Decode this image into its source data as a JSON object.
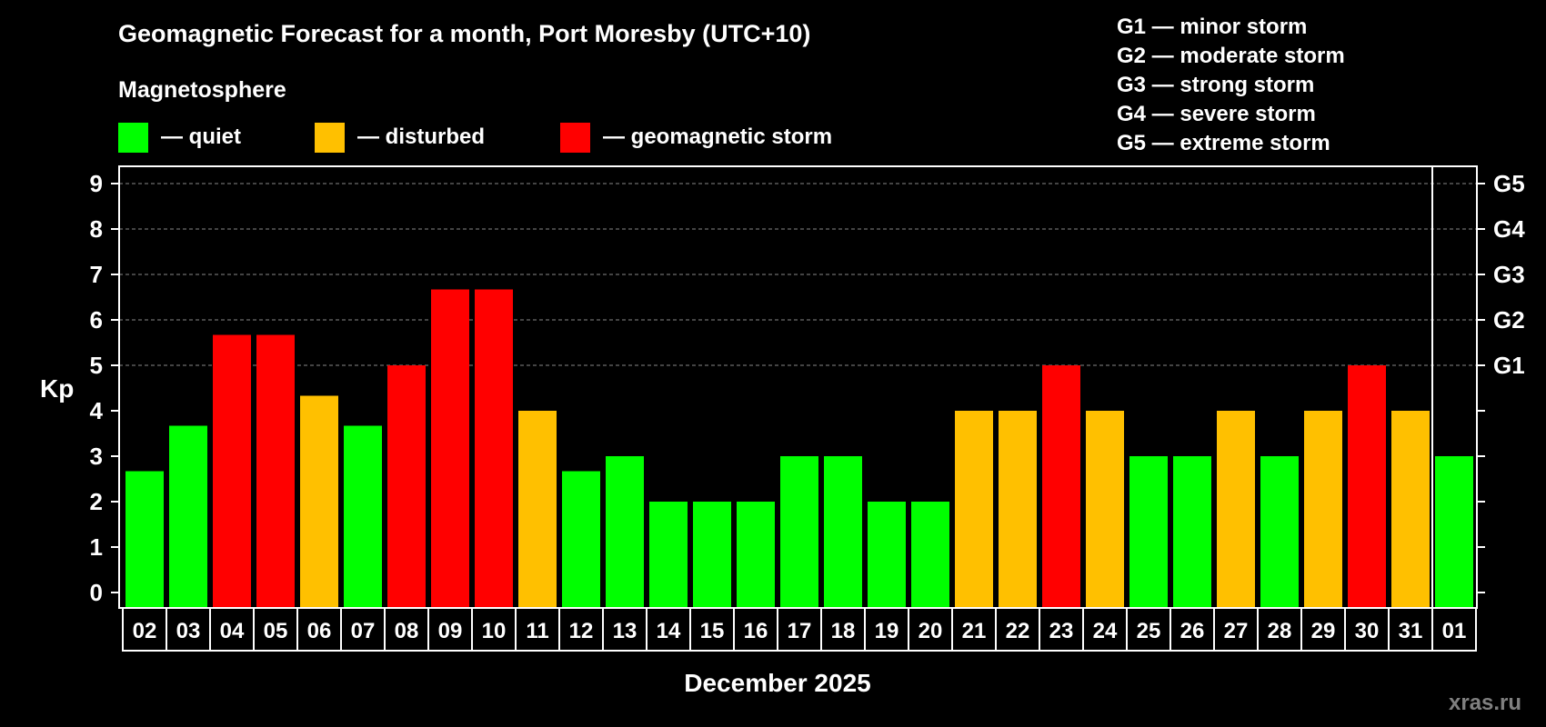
{
  "header": {
    "title": "Geomagnetic Forecast for a month, Port Moresby (UTC+10)",
    "subtitle": "Magnetosphere"
  },
  "legend": [
    {
      "label": "— quiet",
      "color": "#00ff00",
      "key": "quiet"
    },
    {
      "label": "— disturbed",
      "color": "#ffc000",
      "key": "disturbed"
    },
    {
      "label": "— geomagnetic storm",
      "color": "#ff0000",
      "key": "storm"
    }
  ],
  "gscale_legend": [
    "G1 — minor storm",
    "G2 — moderate storm",
    "G3 — strong storm",
    "G4 — severe storm",
    "G5 — extreme storm"
  ],
  "watermark": "xras.ru",
  "colors": {
    "background": "#000000",
    "quiet": "#00ff00",
    "disturbed": "#ffc000",
    "storm": "#ff0000",
    "grid": "#888888",
    "axis": "#ffffff"
  },
  "chart_data": {
    "type": "bar",
    "title": "Geomagnetic Forecast for a month, Port Moresby (UTC+10)",
    "subtitle": "Magnetosphere",
    "xlabel": "December 2025",
    "ylabel": "Kp",
    "ylim": [
      0,
      9
    ],
    "yticks": [
      0,
      1,
      2,
      3,
      4,
      5,
      6,
      7,
      8,
      9
    ],
    "right_axis_labels": [
      {
        "kp": 5,
        "label": "G1"
      },
      {
        "kp": 6,
        "label": "G2"
      },
      {
        "kp": 7,
        "label": "G3"
      },
      {
        "kp": 8,
        "label": "G4"
      },
      {
        "kp": 9,
        "label": "G5"
      }
    ],
    "grid": "dashed horizontal at Kp 5-9",
    "legend_position": "top",
    "month_divider_before": "01",
    "categories": [
      "02",
      "03",
      "04",
      "05",
      "06",
      "07",
      "08",
      "09",
      "10",
      "11",
      "12",
      "13",
      "14",
      "15",
      "16",
      "17",
      "18",
      "19",
      "20",
      "21",
      "22",
      "23",
      "24",
      "25",
      "26",
      "27",
      "28",
      "29",
      "30",
      "31",
      "01"
    ],
    "values": [
      2.67,
      3.67,
      5.67,
      5.67,
      4.33,
      3.67,
      5.0,
      6.67,
      6.67,
      4.0,
      2.67,
      3.0,
      2.0,
      2.0,
      2.0,
      3.0,
      3.0,
      2.0,
      2.0,
      4.0,
      4.0,
      5.0,
      4.0,
      3.0,
      3.0,
      4.0,
      3.0,
      4.0,
      5.0,
      4.0,
      3.0
    ],
    "status": [
      "quiet",
      "quiet",
      "storm",
      "storm",
      "disturbed",
      "quiet",
      "storm",
      "storm",
      "storm",
      "disturbed",
      "quiet",
      "quiet",
      "quiet",
      "quiet",
      "quiet",
      "quiet",
      "quiet",
      "quiet",
      "quiet",
      "disturbed",
      "disturbed",
      "storm",
      "disturbed",
      "quiet",
      "quiet",
      "disturbed",
      "quiet",
      "disturbed",
      "storm",
      "disturbed",
      "quiet"
    ]
  }
}
